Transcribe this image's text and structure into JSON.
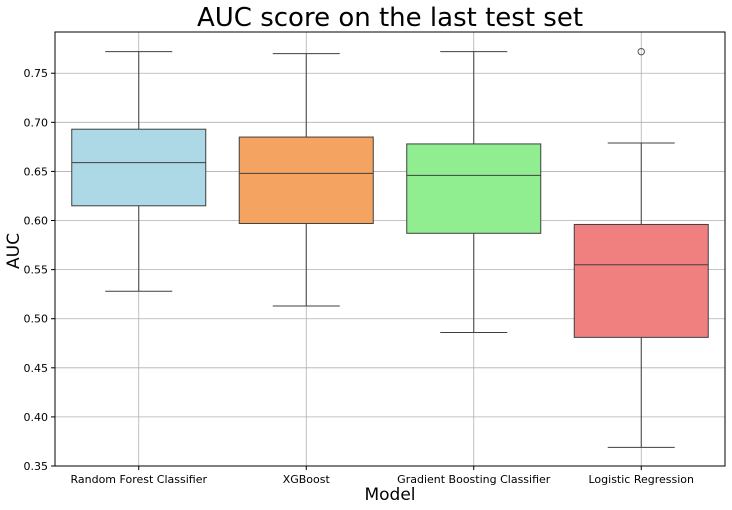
{
  "chart_data": {
    "type": "box",
    "title": "AUC score on the last test set",
    "xlabel": "Model",
    "ylabel": "AUC",
    "ylim": [
      0.35,
      0.792
    ],
    "yticks": [
      "0.35",
      "0.40",
      "0.45",
      "0.50",
      "0.55",
      "0.60",
      "0.65",
      "0.70",
      "0.75"
    ],
    "grid": true,
    "categories": [
      "Random Forest Classifier",
      "XGBoost",
      "Gradient Boosting Classifier",
      "Logistic Regression"
    ],
    "boxes": [
      {
        "category": "Random Forest Classifier",
        "whisker_low": 0.528,
        "q1": 0.615,
        "median": 0.659,
        "q3": 0.693,
        "whisker_high": 0.772,
        "outliers": [],
        "color": "#add8e6"
      },
      {
        "category": "XGBoost",
        "whisker_low": 0.513,
        "q1": 0.597,
        "median": 0.648,
        "q3": 0.685,
        "whisker_high": 0.77,
        "outliers": [],
        "color": "#f4a460"
      },
      {
        "category": "Gradient Boosting Classifier",
        "whisker_low": 0.486,
        "q1": 0.587,
        "median": 0.646,
        "q3": 0.678,
        "whisker_high": 0.772,
        "outliers": [],
        "color": "#90ee90"
      },
      {
        "category": "Logistic Regression",
        "whisker_low": 0.369,
        "q1": 0.481,
        "median": 0.555,
        "q3": 0.596,
        "whisker_high": 0.679,
        "outliers": [
          0.772
        ],
        "color": "#f08080"
      }
    ]
  }
}
